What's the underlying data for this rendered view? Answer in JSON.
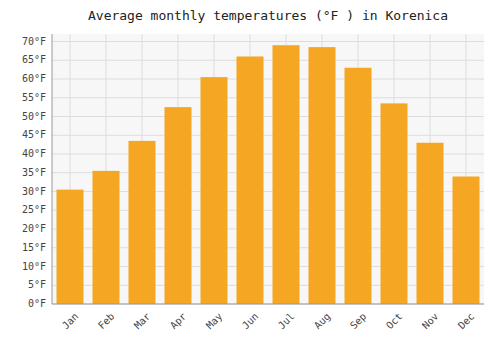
{
  "chart_data": {
    "type": "bar",
    "title": "Average monthly temperatures (°F ) in Korenica",
    "categories": [
      "Jan",
      "Feb",
      "Mar",
      "Apr",
      "May",
      "Jun",
      "Jul",
      "Aug",
      "Sep",
      "Oct",
      "Nov",
      "Dec"
    ],
    "values": [
      30.5,
      35.5,
      43.5,
      52.5,
      60.5,
      66.0,
      69.0,
      68.5,
      63.0,
      53.5,
      43.0,
      34.0
    ],
    "color": "#F5A623",
    "ylim": [
      0,
      72
    ],
    "yticks": [
      {
        "value": 0,
        "label": "0°F"
      },
      {
        "value": 5,
        "label": "5°F"
      },
      {
        "value": 10,
        "label": "10°F"
      },
      {
        "value": 15,
        "label": "15°F"
      },
      {
        "value": 20,
        "label": "20°F"
      },
      {
        "value": 25,
        "label": "25°F"
      },
      {
        "value": 30,
        "label": "30°F"
      },
      {
        "value": 35,
        "label": "35°F"
      },
      {
        "value": 40,
        "label": "40°F"
      },
      {
        "value": 45,
        "label": "45°F"
      },
      {
        "value": 50,
        "label": "50°F"
      },
      {
        "value": 55,
        "label": "55°F"
      },
      {
        "value": 60,
        "label": "60°F"
      },
      {
        "value": 65,
        "label": "65°F"
      },
      {
        "value": 70,
        "label": "70°F"
      }
    ],
    "grid": true
  }
}
